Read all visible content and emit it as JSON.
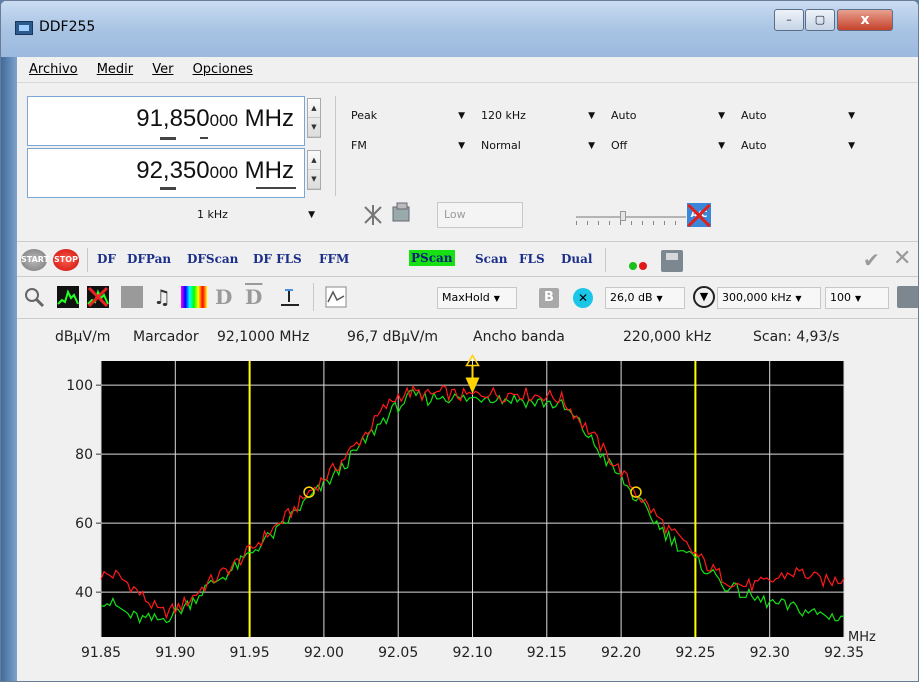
{
  "window": {
    "title": "DDF255",
    "minimize": "–",
    "maximize": "▢",
    "close": "x"
  },
  "menu": {
    "items": [
      "Archivo",
      "Medir",
      "Ver",
      "Opciones"
    ]
  },
  "freq1": {
    "main": "91,850",
    "small": "000",
    "unit": "MHz"
  },
  "freq2": {
    "main": "92,350",
    "small": "000",
    "unit": "MHz"
  },
  "controls": {
    "row1": [
      "Peak",
      "120 kHz",
      "Auto",
      "Auto"
    ],
    "row2": [
      "FM",
      "Normal",
      "Off",
      "Auto"
    ],
    "step": "1 kHz",
    "low": "Low"
  },
  "toolbar1": {
    "start": "START",
    "stop": "STOP",
    "modes": [
      "DF",
      "DFPan",
      "DFScan",
      "DF FLS",
      "FFM",
      "PScan",
      "Scan",
      "FLS",
      "Dual"
    ],
    "active_mode": "PScan"
  },
  "toolbar2": {
    "maxhold": "MaxHold",
    "b_label": "B",
    "x_label": "✕",
    "ref_level": "26,0 dB",
    "span": "300,000 kHz",
    "range": "100"
  },
  "status": {
    "unit": "dBµV/m",
    "marker_label": "Marcador",
    "marker_freq": "92,1000 MHz",
    "marker_level": "96,7 dBµV/m",
    "bw_label": "Ancho banda",
    "bw_value": "220,000 kHz",
    "scan_rate": "Scan: 4,93/s"
  },
  "colors": {
    "plot_bg": "#000000",
    "trace_maxhold": "#ff1a1a",
    "trace_clear": "#14e014",
    "marker_line": "#ffff00",
    "active_mode_bg": "#16e012"
  },
  "chart_data": {
    "type": "line",
    "xlabel": "MHz",
    "xlim": [
      91.85,
      92.35
    ],
    "ylim": [
      27,
      107
    ],
    "x_ticks": [
      "91.85",
      "91.90",
      "91.95",
      "92.00",
      "92.05",
      "92.10",
      "92.15",
      "92.20",
      "92.25",
      "92.30",
      "92.35"
    ],
    "y_ticks": [
      100,
      80,
      60,
      40
    ],
    "grid": true,
    "markers": {
      "limit_lines": [
        91.95,
        92.25
      ],
      "center_marker": 92.1,
      "bw_points": [
        91.99,
        92.21
      ]
    },
    "series": [
      {
        "color": "red",
        "x": [
          91.85,
          91.86,
          91.87,
          91.88,
          91.89,
          91.9,
          91.91,
          91.92,
          91.93,
          91.94,
          91.95,
          91.96,
          91.97,
          91.98,
          91.99,
          92.0,
          92.01,
          92.02,
          92.03,
          92.04,
          92.05,
          92.06,
          92.07,
          92.08,
          92.09,
          92.1,
          92.11,
          92.12,
          92.13,
          92.14,
          92.15,
          92.16,
          92.17,
          92.18,
          92.19,
          92.2,
          92.21,
          92.22,
          92.23,
          92.24,
          92.25,
          92.26,
          92.27,
          92.28,
          92.29,
          92.3,
          92.31,
          92.32,
          92.33,
          92.34,
          92.35
        ],
        "y": [
          45,
          45,
          42,
          38,
          34,
          35,
          38,
          42,
          45,
          48,
          52,
          56,
          60,
          64,
          69,
          73,
          77,
          82,
          87,
          93,
          97,
          98,
          97,
          98,
          97,
          97,
          98,
          97,
          98,
          97,
          97,
          96,
          91,
          86,
          80,
          75,
          69,
          64,
          59,
          55,
          51,
          47,
          44,
          42,
          42,
          43,
          45,
          46,
          44,
          43,
          44
        ]
      },
      {
        "color": "green",
        "x": [
          91.85,
          91.86,
          91.87,
          91.88,
          91.89,
          91.9,
          91.91,
          91.92,
          91.93,
          91.94,
          91.95,
          91.96,
          91.97,
          91.98,
          91.99,
          92.0,
          92.01,
          92.02,
          92.03,
          92.04,
          92.05,
          92.06,
          92.07,
          92.08,
          92.09,
          92.1,
          92.11,
          92.12,
          92.13,
          92.14,
          92.15,
          92.16,
          92.17,
          92.18,
          92.19,
          92.2,
          92.21,
          92.22,
          92.23,
          92.24,
          92.25,
          92.26,
          92.27,
          92.28,
          92.29,
          92.3,
          92.31,
          92.32,
          92.33,
          92.34,
          92.35
        ],
        "y": [
          38,
          36,
          33,
          32,
          32,
          34,
          37,
          41,
          44,
          47,
          51,
          55,
          58,
          63,
          67,
          71,
          75,
          80,
          85,
          90,
          94,
          97,
          96,
          97,
          96,
          96,
          97,
          96,
          96,
          95,
          95,
          94,
          90,
          84,
          78,
          73,
          67,
          62,
          57,
          53,
          49,
          46,
          42,
          40,
          38,
          37,
          36,
          35,
          34,
          33,
          33
        ]
      }
    ]
  }
}
